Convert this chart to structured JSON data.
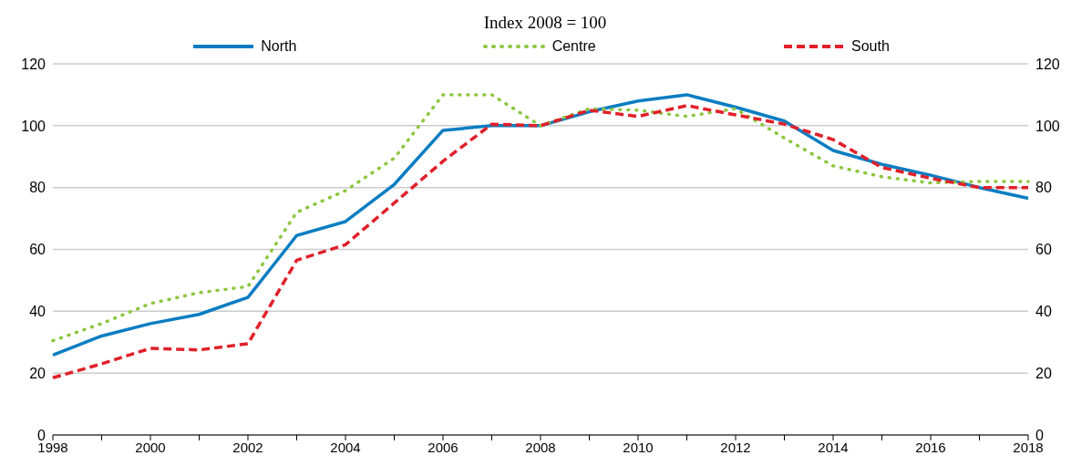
{
  "chart_data": {
    "type": "line",
    "title": "Index 2008 = 100",
    "categories": [
      "1998",
      null,
      "2000",
      null,
      "2002",
      null,
      "2004",
      null,
      "2006",
      null,
      "2008",
      null,
      "2010",
      null,
      "2012",
      null,
      "2014",
      null,
      "2016",
      null,
      "2018"
    ],
    "series": [
      {
        "name": "North",
        "color": "#0a7dc2",
        "line_style": "solid",
        "values": [
          25.8,
          32,
          36,
          39,
          44.5,
          64.5,
          69,
          81,
          98.5,
          100,
          100,
          104.5,
          108,
          110,
          106,
          101.5,
          92,
          87.5,
          84,
          80,
          76.5
        ]
      },
      {
        "name": "Centre",
        "color": "#8cc63f",
        "line_style": "dotted",
        "values": [
          30.5,
          36,
          42.5,
          46,
          48,
          72,
          79,
          89.5,
          110,
          110,
          100,
          105.5,
          105,
          103,
          105.5,
          96,
          87,
          83.5,
          81.5,
          82,
          82
        ]
      },
      {
        "name": "South",
        "color": "#e0202a",
        "line_style": "dashed",
        "values": [
          18.5,
          23,
          28,
          27.5,
          29.5,
          56.5,
          61.5,
          75,
          88.5,
          100.5,
          100,
          105,
          103,
          106.5,
          103.5,
          100.5,
          95.5,
          86.5,
          83,
          80,
          80
        ]
      }
    ],
    "ylim": [
      0,
      120
    ],
    "yticks": [
      0,
      20,
      40,
      60,
      80,
      100,
      120
    ],
    "y2lim": [
      0,
      120
    ],
    "y2ticks": [
      0,
      20,
      40,
      60,
      80,
      100,
      120
    ],
    "grid": "y",
    "legend": "top",
    "marker": "none"
  }
}
